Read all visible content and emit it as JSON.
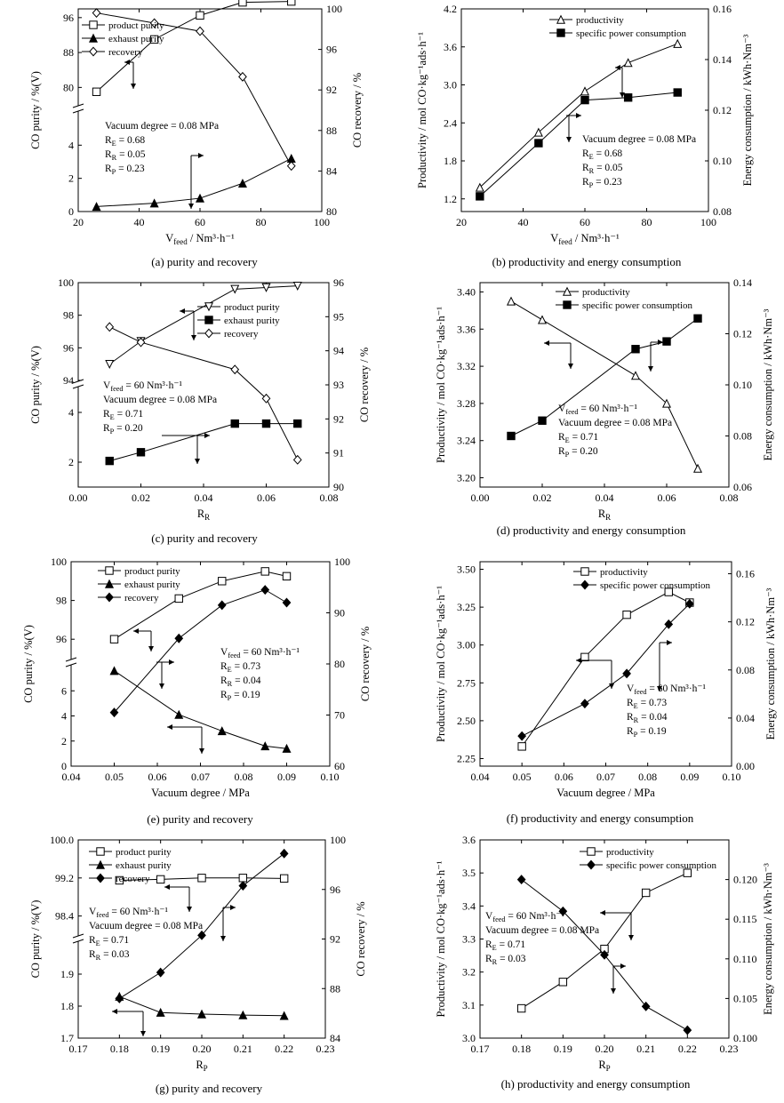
{
  "figure": {
    "panels": [
      {
        "id": "a",
        "caption": "(a) purity and recovery",
        "xlabel": "V_feed / Nm³·h⁻¹",
        "ylabel_left": "CO purity / %(V)",
        "ylabel_right": "CO recovery / %",
        "legend": [
          "product purity",
          "exhaust purity",
          "recovery"
        ],
        "annotation": [
          "Vacuum degree = 0.08 MPa",
          "R_E = 0.68",
          "R_R = 0.05",
          "R_P = 0.23"
        ]
      },
      {
        "id": "b",
        "caption": "(b) productivity and energy consumption",
        "xlabel": "V_feed / Nm³·h⁻¹",
        "ylabel_left": "Productivity / mol CO·kg⁻¹ads·h⁻¹",
        "ylabel_right": "Energy consumption / kWh·Nm⁻³",
        "legend": [
          "productivity",
          "specific power consumption"
        ],
        "annotation": [
          "Vacuum degree = 0.08 MPa",
          "R_E = 0.68",
          "R_R = 0.05",
          "R_P = 0.23"
        ]
      },
      {
        "id": "c",
        "caption": "(c) purity and recovery",
        "xlabel": "R_R",
        "ylabel_left": "CO purity / %(V)",
        "ylabel_right": "CO recovery / %",
        "legend": [
          "product purity",
          "exhaust purity",
          "recovery"
        ],
        "annotation": [
          "V_feed = 60 Nm³·h⁻¹",
          "Vacuum degree = 0.08 MPa",
          "R_E = 0.71",
          "R_P = 0.20"
        ]
      },
      {
        "id": "d",
        "caption": "(d) productivity and energy consumption",
        "xlabel": "R_R",
        "ylabel_left": "Productivity / mol CO·kg⁻¹ads·h⁻¹",
        "ylabel_right": "Energy consumption / kWh·Nm⁻³",
        "legend": [
          "productivity",
          "specific power consumption"
        ],
        "annotation": [
          "V_feed = 60 Nm³·h⁻¹",
          "Vacuum degree = 0.08 MPa",
          "R_E = 0.71",
          "R_P = 0.20"
        ]
      },
      {
        "id": "e",
        "caption": "(e) purity and recovery",
        "xlabel": "Vacuum degree / MPa",
        "ylabel_left": "CO purity / %(V)",
        "ylabel_right": "CO recovery / %",
        "legend": [
          "product purity",
          "exhaust purity",
          "recovery"
        ],
        "annotation": [
          "V_feed = 60 Nm³·h⁻¹",
          "R_E = 0.73",
          "R_R = 0.04",
          "R_P = 0.19"
        ]
      },
      {
        "id": "f",
        "caption": "(f) productivity and energy consumption",
        "xlabel": "Vacuum degree / MPa",
        "ylabel_left": "Productivity / mol CO·kg⁻¹ads·h⁻¹",
        "ylabel_right": "Energy consumption / kWh·Nm⁻³",
        "legend": [
          "productivity",
          "specific power consumption"
        ],
        "annotation": [
          "V_feed = 60 Nm³·h⁻¹",
          "R_E = 0.73",
          "R_R = 0.04",
          "R_P = 0.19"
        ]
      },
      {
        "id": "g",
        "caption": "(g) purity and recovery",
        "xlabel": "R_P",
        "ylabel_left": "CO purity / %(V)",
        "ylabel_right": "CO recovery / %",
        "legend": [
          "product purity",
          "exhaust purity",
          "recovery"
        ],
        "annotation": [
          "V_feed = 60 Nm³·h⁻¹",
          "Vacuum degree = 0.08 MPa",
          "R_E = 0.71",
          "R_R = 0.03"
        ]
      },
      {
        "id": "h",
        "caption": "(h) productivity and energy consumption",
        "xlabel": "R_P",
        "ylabel_left": "Productivity / mol CO·kg⁻¹ads·h⁻¹",
        "ylabel_right": "Energy consumption / kWh·Nm⁻³",
        "legend": [
          "productivity",
          "specific power consumption"
        ],
        "annotation": [
          "V_feed = 60 Nm³·h⁻¹",
          "Vacuum degree = 0.08 MPa",
          "R_E = 0.71",
          "R_R = 0.03"
        ]
      }
    ]
  },
  "chart_data": [
    {
      "id": "a",
      "type": "line",
      "x": [
        26,
        45,
        60,
        74,
        90
      ],
      "xlim": [
        20,
        100
      ],
      "xticks": [
        20,
        40,
        60,
        80,
        100
      ],
      "left_axis": {
        "broken": true,
        "lower": {
          "lim": [
            0,
            6
          ],
          "ticks": [
            0,
            2,
            4
          ]
        },
        "upper": {
          "lim": [
            76,
            98
          ],
          "ticks": [
            80,
            88,
            96
          ]
        }
      },
      "right_axis": {
        "lim": [
          80,
          100
        ],
        "ticks": [
          80,
          84,
          88,
          92,
          96,
          100
        ]
      },
      "series": [
        {
          "name": "product purity",
          "axis": "left",
          "marker": "open-square",
          "values": [
            79,
            91,
            96.5,
            99.5,
            99.7
          ]
        },
        {
          "name": "exhaust purity",
          "axis": "left",
          "marker": "filled-triangle",
          "values": [
            0.3,
            0.5,
            0.8,
            1.7,
            3.2
          ]
        },
        {
          "name": "recovery",
          "axis": "right",
          "marker": "open-diamond",
          "values": [
            99.6,
            98.6,
            97.8,
            93.3,
            84.5
          ]
        }
      ]
    },
    {
      "id": "b",
      "type": "line",
      "x": [
        26,
        45,
        60,
        74,
        90
      ],
      "xlim": [
        20,
        100
      ],
      "xticks": [
        20,
        40,
        60,
        80,
        100
      ],
      "left_axis": {
        "lim": [
          1.0,
          4.2
        ],
        "ticks": [
          1.2,
          1.8,
          2.4,
          3.0,
          3.6,
          4.2
        ]
      },
      "right_axis": {
        "lim": [
          0.08,
          0.16
        ],
        "ticks": [
          0.08,
          0.1,
          0.12,
          0.14,
          0.16
        ]
      },
      "series": [
        {
          "name": "productivity",
          "axis": "left",
          "marker": "open-triangle",
          "values": [
            1.38,
            2.25,
            2.9,
            3.35,
            3.65
          ]
        },
        {
          "name": "specific power consumption",
          "axis": "right",
          "marker": "filled-square",
          "values": [
            0.086,
            0.107,
            0.124,
            0.125,
            0.127
          ]
        }
      ]
    },
    {
      "id": "c",
      "type": "line",
      "x": [
        0.01,
        0.02,
        0.05,
        0.06,
        0.07
      ],
      "xlim": [
        0.0,
        0.08
      ],
      "xticks": [
        0.0,
        0.02,
        0.04,
        0.06,
        0.08
      ],
      "left_axis": {
        "broken": true,
        "lower": {
          "lim": [
            1,
            5
          ],
          "ticks": [
            2,
            4
          ]
        },
        "upper": {
          "lim": [
            94,
            100
          ],
          "ticks": [
            94,
            96,
            98,
            100
          ]
        }
      },
      "right_axis": {
        "lim": [
          90,
          96
        ],
        "ticks": [
          90,
          91,
          92,
          93,
          94,
          95,
          96
        ]
      },
      "series": [
        {
          "name": "product purity",
          "axis": "left",
          "marker": "open-down-triangle",
          "values": [
            95,
            96.4,
            99.6,
            99.7,
            99.8
          ]
        },
        {
          "name": "exhaust purity",
          "axis": "left",
          "marker": "filled-square",
          "values": [
            2.05,
            2.4,
            3.55,
            3.55,
            3.55
          ]
        },
        {
          "name": "recovery",
          "axis": "right",
          "marker": "open-diamond",
          "values": [
            94.7,
            94.25,
            93.45,
            92.6,
            90.8
          ]
        }
      ]
    },
    {
      "id": "d",
      "type": "line",
      "x": [
        0.01,
        0.02,
        0.05,
        0.06,
        0.07
      ],
      "xlim": [
        0.0,
        0.08
      ],
      "xticks": [
        0.0,
        0.02,
        0.04,
        0.06,
        0.08
      ],
      "left_axis": {
        "lim": [
          3.19,
          3.41
        ],
        "ticks": [
          3.2,
          3.24,
          3.28,
          3.32,
          3.36,
          3.4
        ]
      },
      "right_axis": {
        "lim": [
          0.06,
          0.14
        ],
        "ticks": [
          0.06,
          0.08,
          0.1,
          0.12,
          0.14
        ]
      },
      "series": [
        {
          "name": "productivity",
          "axis": "left",
          "marker": "open-triangle",
          "values": [
            3.39,
            3.37,
            3.31,
            3.28,
            3.21
          ]
        },
        {
          "name": "specific power consumption",
          "axis": "right",
          "marker": "filled-square",
          "values": [
            0.08,
            0.086,
            0.114,
            0.117,
            0.126
          ]
        }
      ]
    },
    {
      "id": "e",
      "type": "line",
      "x": [
        0.05,
        0.065,
        0.075,
        0.085,
        0.09
      ],
      "xlim": [
        0.04,
        0.1
      ],
      "xticks": [
        0.04,
        0.05,
        0.06,
        0.07,
        0.08,
        0.09,
        0.1
      ],
      "left_axis": {
        "broken": true,
        "lower": {
          "lim": [
            0,
            8
          ],
          "ticks": [
            0,
            2,
            4,
            6
          ]
        },
        "upper": {
          "lim": [
            95,
            100
          ],
          "ticks": [
            96,
            98,
            100
          ]
        }
      },
      "right_axis": {
        "lim": [
          60,
          100
        ],
        "ticks": [
          60,
          70,
          80,
          90,
          100
        ]
      },
      "series": [
        {
          "name": "product purity",
          "axis": "left",
          "marker": "open-square",
          "values": [
            96,
            98.1,
            99,
            99.5,
            99.25
          ]
        },
        {
          "name": "exhaust purity",
          "axis": "left",
          "marker": "filled-triangle",
          "values": [
            7.6,
            4.1,
            2.8,
            1.6,
            1.4
          ]
        },
        {
          "name": "recovery",
          "axis": "right",
          "marker": "filled-diamond",
          "values": [
            70.5,
            85,
            91.5,
            94.5,
            92
          ]
        }
      ]
    },
    {
      "id": "f",
      "type": "line",
      "x": [
        0.05,
        0.065,
        0.075,
        0.085,
        0.09
      ],
      "xlim": [
        0.04,
        0.1
      ],
      "xticks": [
        0.04,
        0.05,
        0.06,
        0.07,
        0.08,
        0.09,
        0.1
      ],
      "left_axis": {
        "lim": [
          2.2,
          3.55
        ],
        "ticks": [
          2.25,
          2.5,
          2.75,
          3.0,
          3.25,
          3.5
        ]
      },
      "right_axis": {
        "lim": [
          0.0,
          0.17
        ],
        "ticks": [
          0.0,
          0.04,
          0.08,
          0.12,
          0.16
        ]
      },
      "series": [
        {
          "name": "productivity",
          "axis": "left",
          "marker": "open-square",
          "values": [
            2.33,
            2.92,
            3.2,
            3.35,
            3.28
          ]
        },
        {
          "name": "specific power consumption",
          "axis": "right",
          "marker": "filled-diamond",
          "values": [
            0.025,
            0.052,
            0.077,
            0.118,
            0.135
          ]
        }
      ]
    },
    {
      "id": "g",
      "type": "line",
      "x": [
        0.18,
        0.19,
        0.2,
        0.21,
        0.22
      ],
      "xlim": [
        0.17,
        0.23
      ],
      "xticks": [
        0.17,
        0.18,
        0.19,
        0.2,
        0.21,
        0.22,
        0.23
      ],
      "left_axis": {
        "broken": true,
        "lower": {
          "lim": [
            1.7,
            2.0
          ],
          "ticks": [
            1.7,
            1.8,
            1.9
          ]
        },
        "upper": {
          "lim": [
            98.0,
            100.0
          ],
          "ticks": [
            98.4,
            99.2,
            100.0
          ]
        }
      },
      "right_axis": {
        "lim": [
          84,
          100
        ],
        "ticks": [
          84,
          88,
          92,
          96,
          100
        ]
      },
      "series": [
        {
          "name": "product purity",
          "axis": "left",
          "marker": "open-square",
          "values": [
            99.15,
            99.17,
            99.2,
            99.2,
            99.19
          ]
        },
        {
          "name": "exhaust purity",
          "axis": "left",
          "marker": "filled-triangle",
          "values": [
            1.83,
            1.78,
            1.775,
            1.772,
            1.77
          ]
        },
        {
          "name": "recovery",
          "axis": "right",
          "marker": "filled-diamond",
          "values": [
            87.2,
            89.3,
            92.3,
            96.3,
            98.9
          ]
        }
      ]
    },
    {
      "id": "h",
      "type": "line",
      "x": [
        0.18,
        0.19,
        0.2,
        0.21,
        0.22
      ],
      "xlim": [
        0.17,
        0.23
      ],
      "xticks": [
        0.17,
        0.18,
        0.19,
        0.2,
        0.21,
        0.22,
        0.23
      ],
      "left_axis": {
        "lim": [
          3.0,
          3.6
        ],
        "ticks": [
          3.0,
          3.1,
          3.2,
          3.3,
          3.4,
          3.5,
          3.6
        ]
      },
      "right_axis": {
        "lim": [
          0.1,
          0.125
        ],
        "ticks": [
          0.1,
          0.105,
          0.11,
          0.115,
          0.12
        ]
      },
      "series": [
        {
          "name": "productivity",
          "axis": "left",
          "marker": "open-square",
          "values": [
            3.09,
            3.17,
            3.27,
            3.44,
            3.5
          ]
        },
        {
          "name": "specific power consumption",
          "axis": "right",
          "marker": "filled-diamond",
          "values": [
            0.12,
            0.116,
            0.1105,
            0.104,
            0.101
          ]
        }
      ]
    }
  ]
}
